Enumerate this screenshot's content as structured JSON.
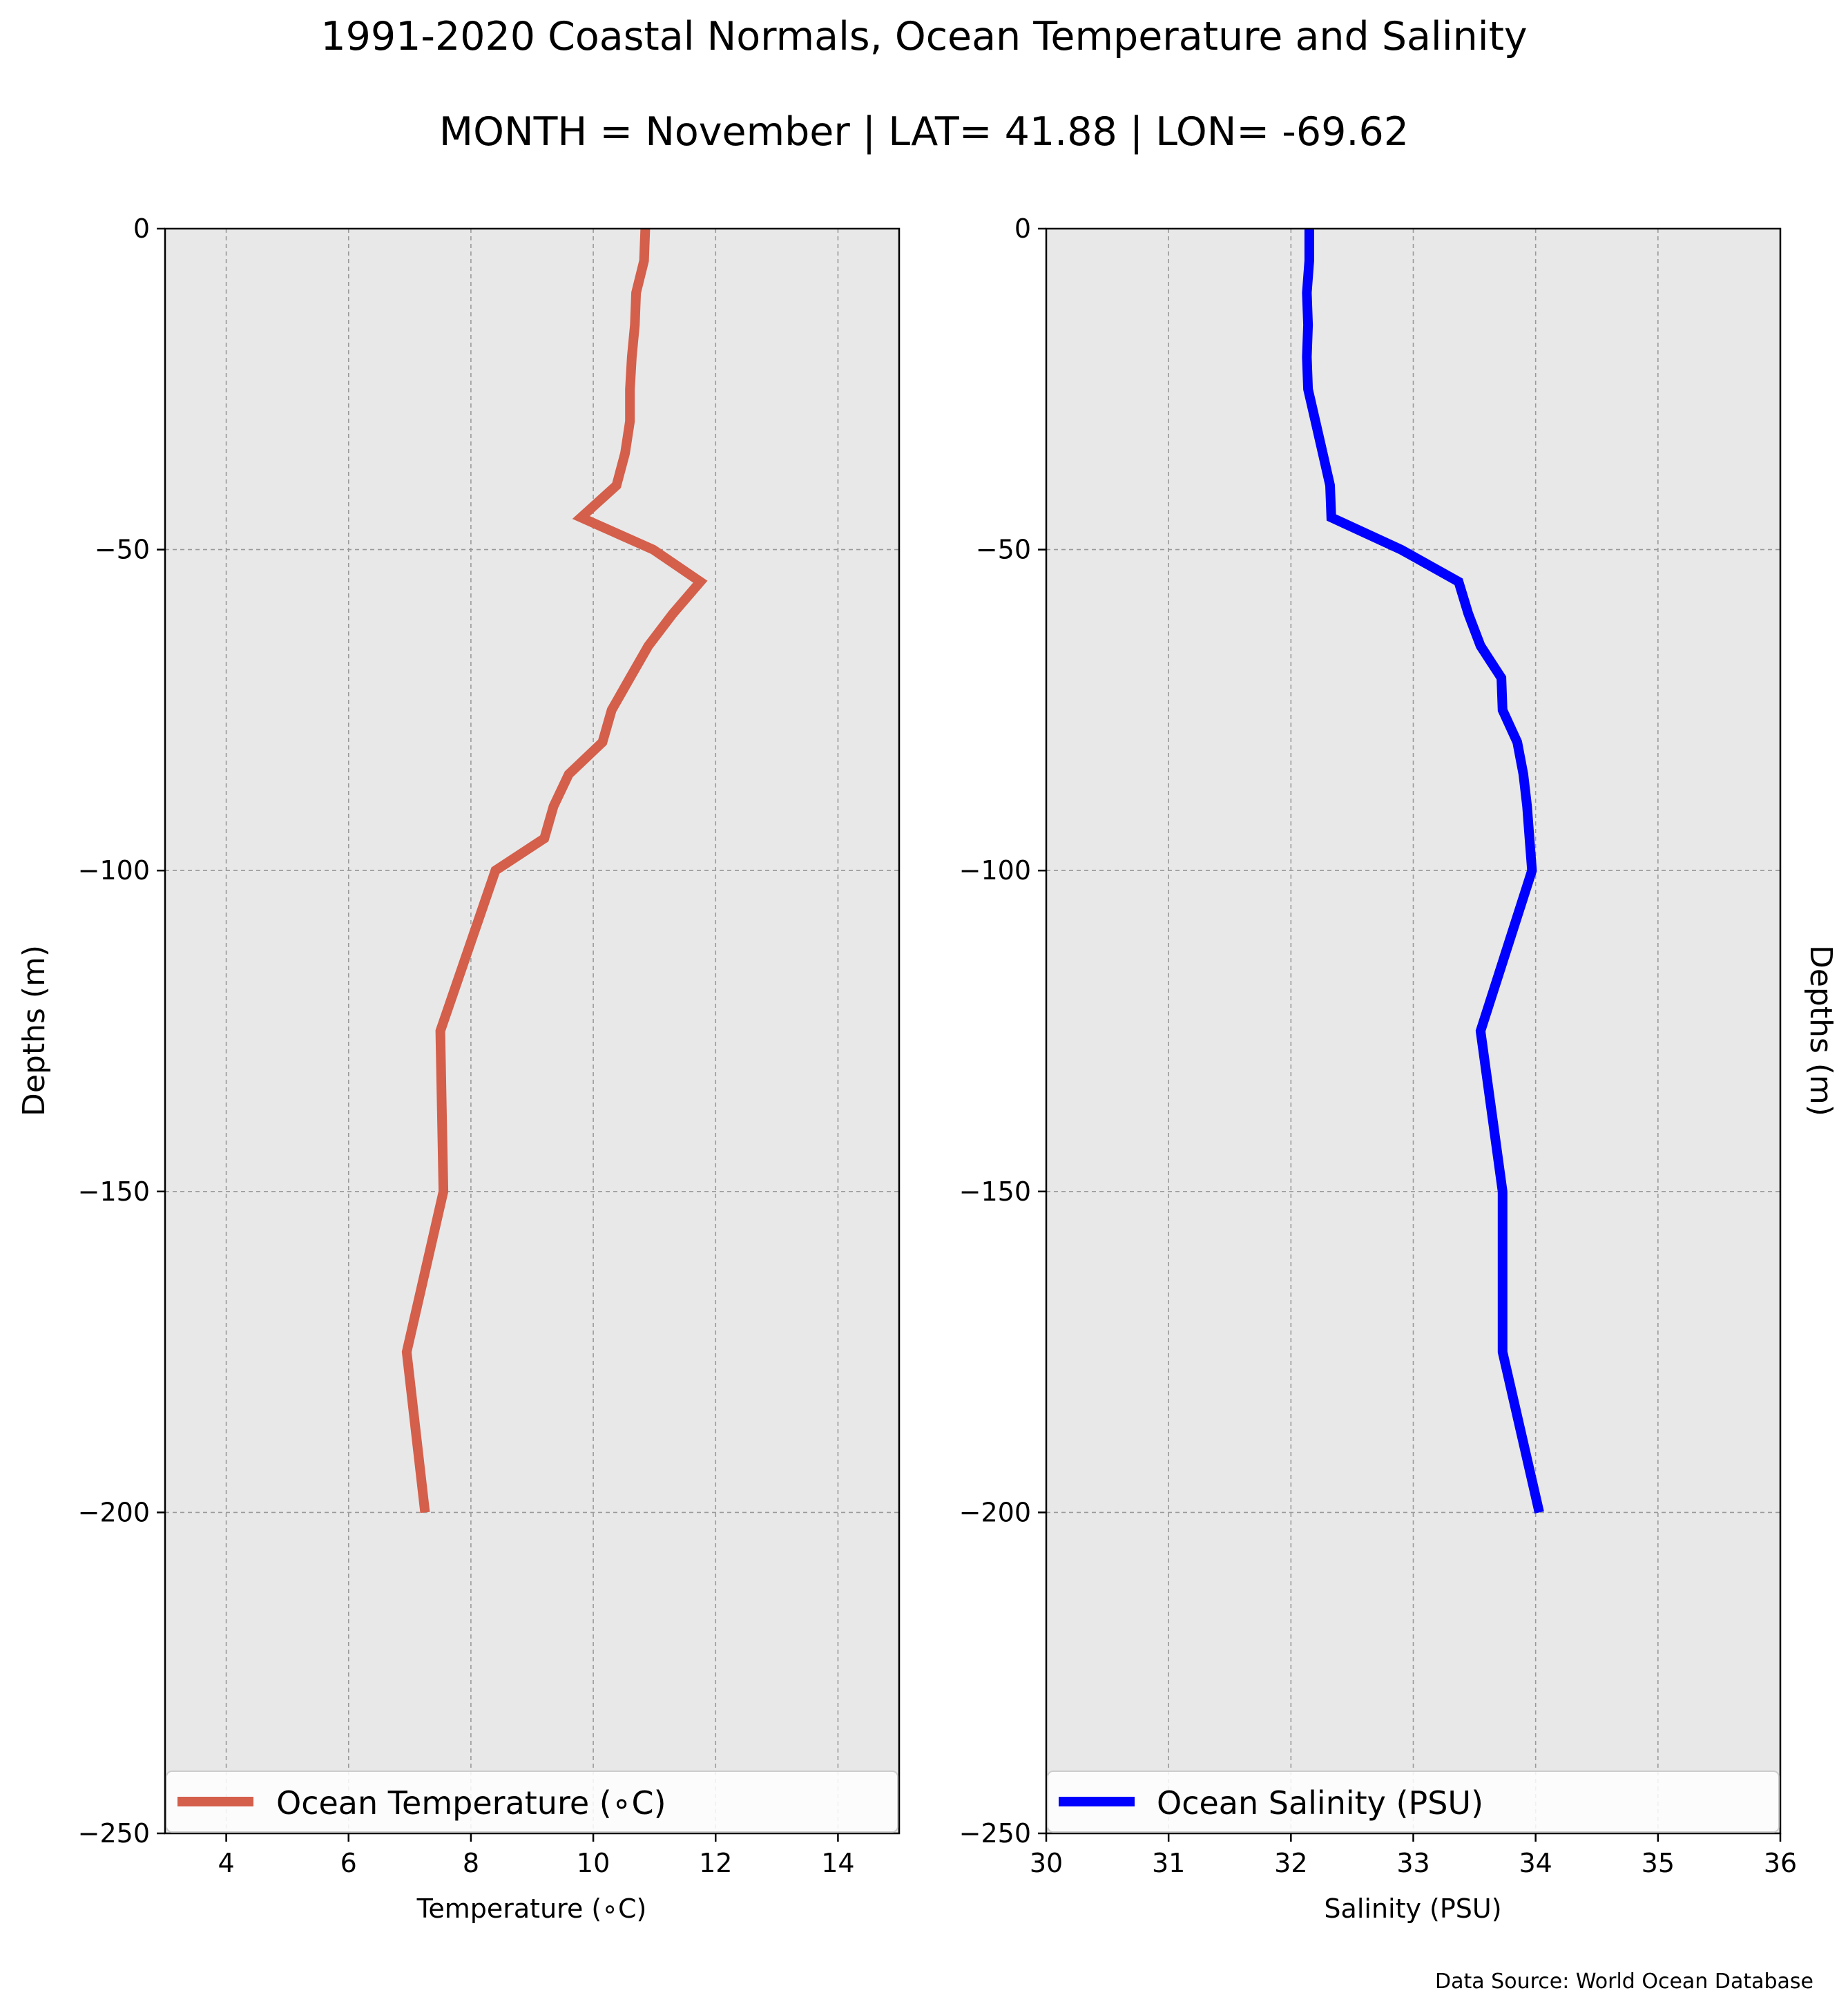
{
  "figure": {
    "title": "1991-2020 Coastal Normals, Ocean Temperature and Salinity",
    "subtitle": "MONTH = November | LAT= 41.88 | LON= -69.62",
    "source": "Data Source: World Ocean Database"
  },
  "chart_data": [
    {
      "type": "line",
      "xlabel": "Temperature (∘C)",
      "ylabel": "Depths (m)",
      "xlim": [
        3,
        15
      ],
      "ylim": [
        -250,
        0
      ],
      "xticks": [
        4,
        6,
        8,
        10,
        12,
        14
      ],
      "yticks": [
        0,
        -50,
        -100,
        -150,
        -200,
        -250
      ],
      "grid": true,
      "background": "#e8e8e8",
      "legend": "lower center",
      "series": [
        {
          "name": "Ocean Temperature (∘C)",
          "color": "#d45f4b",
          "x": [
            10.85,
            10.83,
            10.7,
            10.68,
            10.63,
            10.6,
            10.6,
            10.52,
            10.38,
            9.8,
            10.98,
            11.75,
            11.3,
            10.9,
            10.6,
            10.3,
            10.15,
            9.6,
            9.35,
            9.2,
            8.4,
            7.5,
            7.55,
            6.95,
            7.25
          ],
          "y": [
            0,
            -5,
            -10,
            -15,
            -20,
            -25,
            -30,
            -35,
            -40,
            -45,
            -50,
            -55,
            -60,
            -65,
            -70,
            -75,
            -80,
            -85,
            -90,
            -95,
            -100,
            -125,
            -150,
            -175,
            -200
          ]
        }
      ]
    },
    {
      "type": "line",
      "xlabel": "Salinity (PSU)",
      "ylabel": "Depths (m)",
      "xlim": [
        30,
        36
      ],
      "ylim": [
        -250,
        0
      ],
      "xticks": [
        30,
        31,
        32,
        33,
        34,
        35,
        36
      ],
      "yticks": [
        0,
        -50,
        -100,
        -150,
        -200,
        -250
      ],
      "grid": true,
      "background": "#e8e8e8",
      "legend": "lower center",
      "series": [
        {
          "name": "Ocean Salinity (PSU)",
          "color": "#0000ff",
          "x": [
            32.15,
            32.15,
            32.13,
            32.14,
            32.13,
            32.14,
            32.2,
            32.26,
            32.32,
            32.33,
            32.9,
            33.37,
            33.45,
            33.55,
            33.72,
            33.73,
            33.85,
            33.9,
            33.93,
            33.95,
            33.97,
            33.55,
            33.73,
            33.73,
            34.03
          ],
          "y": [
            0,
            -5,
            -10,
            -15,
            -20,
            -25,
            -30,
            -35,
            -40,
            -45,
            -50,
            -55,
            -60,
            -65,
            -70,
            -75,
            -80,
            -85,
            -90,
            -95,
            -100,
            -125,
            -150,
            -175,
            -200
          ]
        }
      ]
    }
  ]
}
